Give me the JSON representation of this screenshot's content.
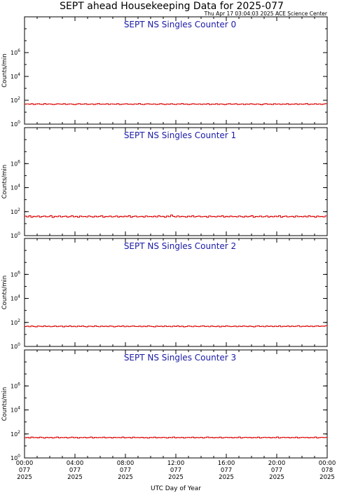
{
  "title": "SEPT ahead Housekeeping Data for 2025-077",
  "timestamp": "Thu Apr 17 03:04:03 2025 ACE Science Center",
  "xlabel": "UTC Day of Year",
  "ylabel": "Counts/min",
  "colors": {
    "line": "#dd0000",
    "panel_title": "#1a1aa6",
    "axis": "#000000"
  },
  "x_ticks": [
    {
      "time": "00:00",
      "doy": "077",
      "year": "2025"
    },
    {
      "time": "04:00",
      "doy": "077",
      "year": "2025"
    },
    {
      "time": "08:00",
      "doy": "077",
      "year": "2025"
    },
    {
      "time": "12:00",
      "doy": "077",
      "year": "2025"
    },
    {
      "time": "16:00",
      "doy": "077",
      "year": "2025"
    },
    {
      "time": "20:00",
      "doy": "077",
      "year": "2025"
    },
    {
      "time": "00:00",
      "doy": "078",
      "year": "2025"
    }
  ],
  "chart_data": [
    {
      "type": "line",
      "title": "SEPT NS Singles Counter 0",
      "ylabel": "Counts/min",
      "yscale": "log",
      "ylim": [
        1,
        1000000000
      ],
      "y_ticks": [
        {
          "value": 1,
          "base": "10",
          "exp": "0"
        },
        {
          "value": 100,
          "base": "10",
          "exp": "2"
        },
        {
          "value": 10000,
          "base": "10",
          "exp": "4"
        },
        {
          "value": 1000000,
          "base": "10",
          "exp": "6"
        }
      ],
      "xlim_hours": [
        0,
        24
      ],
      "step": "histogram",
      "approx_level": 45,
      "series": [
        {
          "values": [
            48,
            50,
            46,
            52,
            44,
            49,
            51,
            47,
            45,
            53,
            46,
            50,
            48,
            44,
            47,
            51,
            49,
            46,
            52,
            45,
            48,
            50,
            47,
            43,
            49,
            52,
            46,
            48,
            51,
            45,
            47,
            50,
            44,
            49,
            53,
            46,
            48,
            47,
            51,
            45,
            50,
            48,
            46,
            52,
            44,
            47,
            49,
            51,
            46,
            48,
            45,
            50,
            47,
            53,
            46,
            44,
            49,
            51,
            48,
            46,
            50,
            45,
            47,
            52,
            48,
            44,
            49,
            46,
            51,
            47,
            45,
            50,
            48,
            53,
            46,
            49,
            44,
            47,
            51,
            48,
            46,
            50,
            45,
            49,
            47,
            52,
            44,
            48,
            46,
            51,
            45,
            50,
            47,
            43,
            49,
            52,
            46,
            48,
            51,
            45,
            47,
            50,
            44,
            49,
            46,
            51,
            48,
            45,
            50,
            47,
            42,
            49,
            52,
            46,
            48,
            44,
            51,
            47,
            50,
            45,
            49,
            46,
            52,
            44,
            48,
            47,
            51,
            45,
            50,
            46,
            49,
            53,
            44,
            48,
            47,
            51,
            46,
            50,
            45,
            49,
            52
          ]
        }
      ]
    },
    {
      "type": "line",
      "title": "SEPT NS Singles Counter 1",
      "ylabel": "Counts/min",
      "yscale": "log",
      "ylim": [
        1,
        1000000000
      ],
      "y_ticks": [
        {
          "value": 1,
          "base": "10",
          "exp": "0"
        },
        {
          "value": 100,
          "base": "10",
          "exp": "2"
        },
        {
          "value": 10000,
          "base": "10",
          "exp": "4"
        },
        {
          "value": 1000000,
          "base": "10",
          "exp": "6"
        }
      ],
      "xlim_hours": [
        0,
        24
      ],
      "step": "histogram",
      "approx_level": 40,
      "series": [
        {
          "values": [
            42,
            36,
            45,
            34,
            41,
            38,
            44,
            35,
            40,
            43,
            37,
            39,
            46,
            33,
            41,
            38,
            44,
            36,
            40,
            42,
            35,
            39,
            45,
            37,
            41,
            34,
            43,
            38,
            40,
            36,
            44,
            39,
            35,
            42,
            37,
            41,
            45,
            34,
            40,
            38,
            43,
            36,
            39,
            44,
            35,
            41,
            37,
            42,
            38,
            46,
            34,
            40,
            43,
            36,
            39,
            41,
            35,
            44,
            38,
            40,
            37,
            42,
            36,
            45,
            39,
            41,
            34,
            43,
            38,
            52,
            40,
            36,
            44,
            37,
            41,
            39,
            35,
            42,
            38,
            45,
            36,
            40,
            43,
            37,
            39,
            41,
            34,
            44,
            38,
            40,
            36,
            42,
            39,
            45,
            35,
            41,
            37,
            43,
            38,
            40,
            36,
            44,
            39,
            35,
            42,
            37,
            41,
            46,
            34,
            40,
            38,
            43,
            36,
            39,
            44,
            35,
            41,
            37,
            42,
            38,
            45,
            34,
            40,
            43,
            36,
            39,
            41,
            35,
            44,
            38,
            40,
            37,
            42,
            36,
            45,
            39,
            41,
            34,
            43,
            38,
            40,
            36,
            44
          ]
        }
      ]
    },
    {
      "type": "line",
      "title": "SEPT NS Singles Counter 2",
      "ylabel": "Counts/min",
      "yscale": "log",
      "ylim": [
        1,
        1000000000
      ],
      "y_ticks": [
        {
          "value": 1,
          "base": "10",
          "exp": "0"
        },
        {
          "value": 100,
          "base": "10",
          "exp": "2"
        },
        {
          "value": 10000,
          "base": "10",
          "exp": "4"
        },
        {
          "value": 1000000,
          "base": "10",
          "exp": "6"
        }
      ],
      "xlim_hours": [
        0,
        24
      ],
      "step": "histogram",
      "approx_level": 45,
      "series": [
        {
          "values": [
            46,
            49,
            44,
            51,
            47,
            43,
            50,
            48,
            45,
            52,
            46,
            49,
            44,
            47,
            51,
            45,
            48,
            50,
            43,
            49,
            46,
            52,
            45,
            48,
            44,
            50,
            47,
            51,
            46,
            43,
            49,
            48,
            45,
            52,
            47,
            44,
            50,
            46,
            49,
            45,
            51,
            48,
            43,
            47,
            50,
            46,
            52,
            44,
            49,
            45,
            48,
            51,
            47,
            46,
            50,
            44,
            49,
            45,
            52,
            48,
            46,
            43,
            50,
            47,
            49,
            45,
            51,
            46,
            48,
            44,
            50,
            47,
            52,
            45,
            49,
            43,
            46,
            51,
            48,
            44,
            50,
            47,
            45,
            49,
            52,
            46,
            48,
            44,
            51,
            47,
            45,
            50,
            43,
            49,
            46,
            52,
            48,
            45,
            47,
            50,
            44,
            49,
            46,
            51,
            48,
            45,
            50,
            47,
            43,
            49,
            52,
            46,
            48,
            44,
            51,
            47,
            50,
            45,
            49,
            46,
            52,
            44,
            48,
            47,
            51,
            45,
            50,
            46,
            49,
            53,
            44,
            48,
            47,
            51,
            46,
            50,
            45,
            49,
            52,
            47,
            50,
            48,
            53
          ]
        }
      ]
    },
    {
      "type": "line",
      "title": "SEPT NS Singles Counter 3",
      "ylabel": "Counts/min",
      "yscale": "log",
      "ylim": [
        1,
        1000000000
      ],
      "y_ticks": [
        {
          "value": 1,
          "base": "10",
          "exp": "0"
        },
        {
          "value": 100,
          "base": "10",
          "exp": "2"
        },
        {
          "value": 10000,
          "base": "10",
          "exp": "4"
        },
        {
          "value": 1000000,
          "base": "10",
          "exp": "6"
        }
      ],
      "xlim_hours": [
        0,
        24
      ],
      "step": "histogram",
      "approx_level": 50,
      "series": [
        {
          "values": [
            48,
            52,
            46,
            55,
            49,
            51,
            47,
            54,
            50,
            45,
            53,
            48,
            52,
            46,
            50,
            55,
            47,
            51,
            49,
            53,
            46,
            50,
            54,
            48,
            52,
            45,
            51,
            49,
            53,
            47,
            50,
            55,
            46,
            52,
            48,
            51,
            49,
            54,
            47,
            50,
            52,
            46,
            53,
            49,
            51,
            48,
            55,
            47,
            50,
            52,
            46,
            54,
            49,
            51,
            48,
            53,
            47,
            50,
            45,
            52,
            49,
            54,
            47,
            51,
            48,
            53,
            50,
            46,
            52,
            49,
            55,
            47,
            51,
            48,
            53,
            46,
            50,
            52,
            49,
            54,
            47,
            51,
            48,
            53,
            46,
            50,
            55,
            49,
            52,
            47,
            51,
            48,
            54,
            46,
            50,
            53,
            49,
            52,
            47,
            51,
            48,
            55,
            46,
            50,
            53,
            49,
            52,
            47,
            51,
            48,
            54,
            46,
            50,
            53,
            49,
            52,
            47,
            51,
            48,
            55,
            46,
            50,
            53,
            49,
            52,
            47,
            51,
            48,
            54,
            46,
            50,
            53,
            49,
            52,
            47,
            51,
            48,
            55,
            46,
            50,
            53,
            49,
            52
          ]
        }
      ]
    }
  ]
}
